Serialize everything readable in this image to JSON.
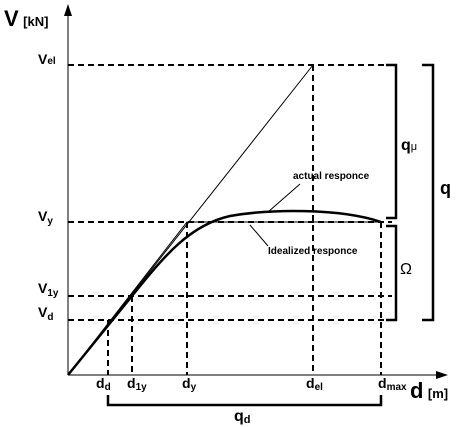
{
  "axes": {
    "y_label": {
      "main": "V",
      "unit": "[kN]"
    },
    "x_label": {
      "main": "d",
      "unit": "[m]"
    }
  },
  "y_levels": [
    {
      "main": "V",
      "sub": "el"
    },
    {
      "main": "V",
      "sub": "y"
    },
    {
      "main": "V",
      "sub": "1y"
    },
    {
      "main": "V",
      "sub": "d"
    }
  ],
  "x_points": [
    {
      "main": "d",
      "sub": "d"
    },
    {
      "main": "d",
      "sub": "1y"
    },
    {
      "main": "d",
      "sub": "y"
    },
    {
      "main": "d",
      "sub": "el"
    },
    {
      "main": "d",
      "sub": "max"
    }
  ],
  "curves": {
    "actual": "actual responce",
    "idealized": "Idealized responce"
  },
  "factors": {
    "q_mu": {
      "main": "q",
      "sub": "μ"
    },
    "omega": "Ω",
    "q": "q",
    "q_d": {
      "main": "q",
      "sub": "d"
    }
  }
}
